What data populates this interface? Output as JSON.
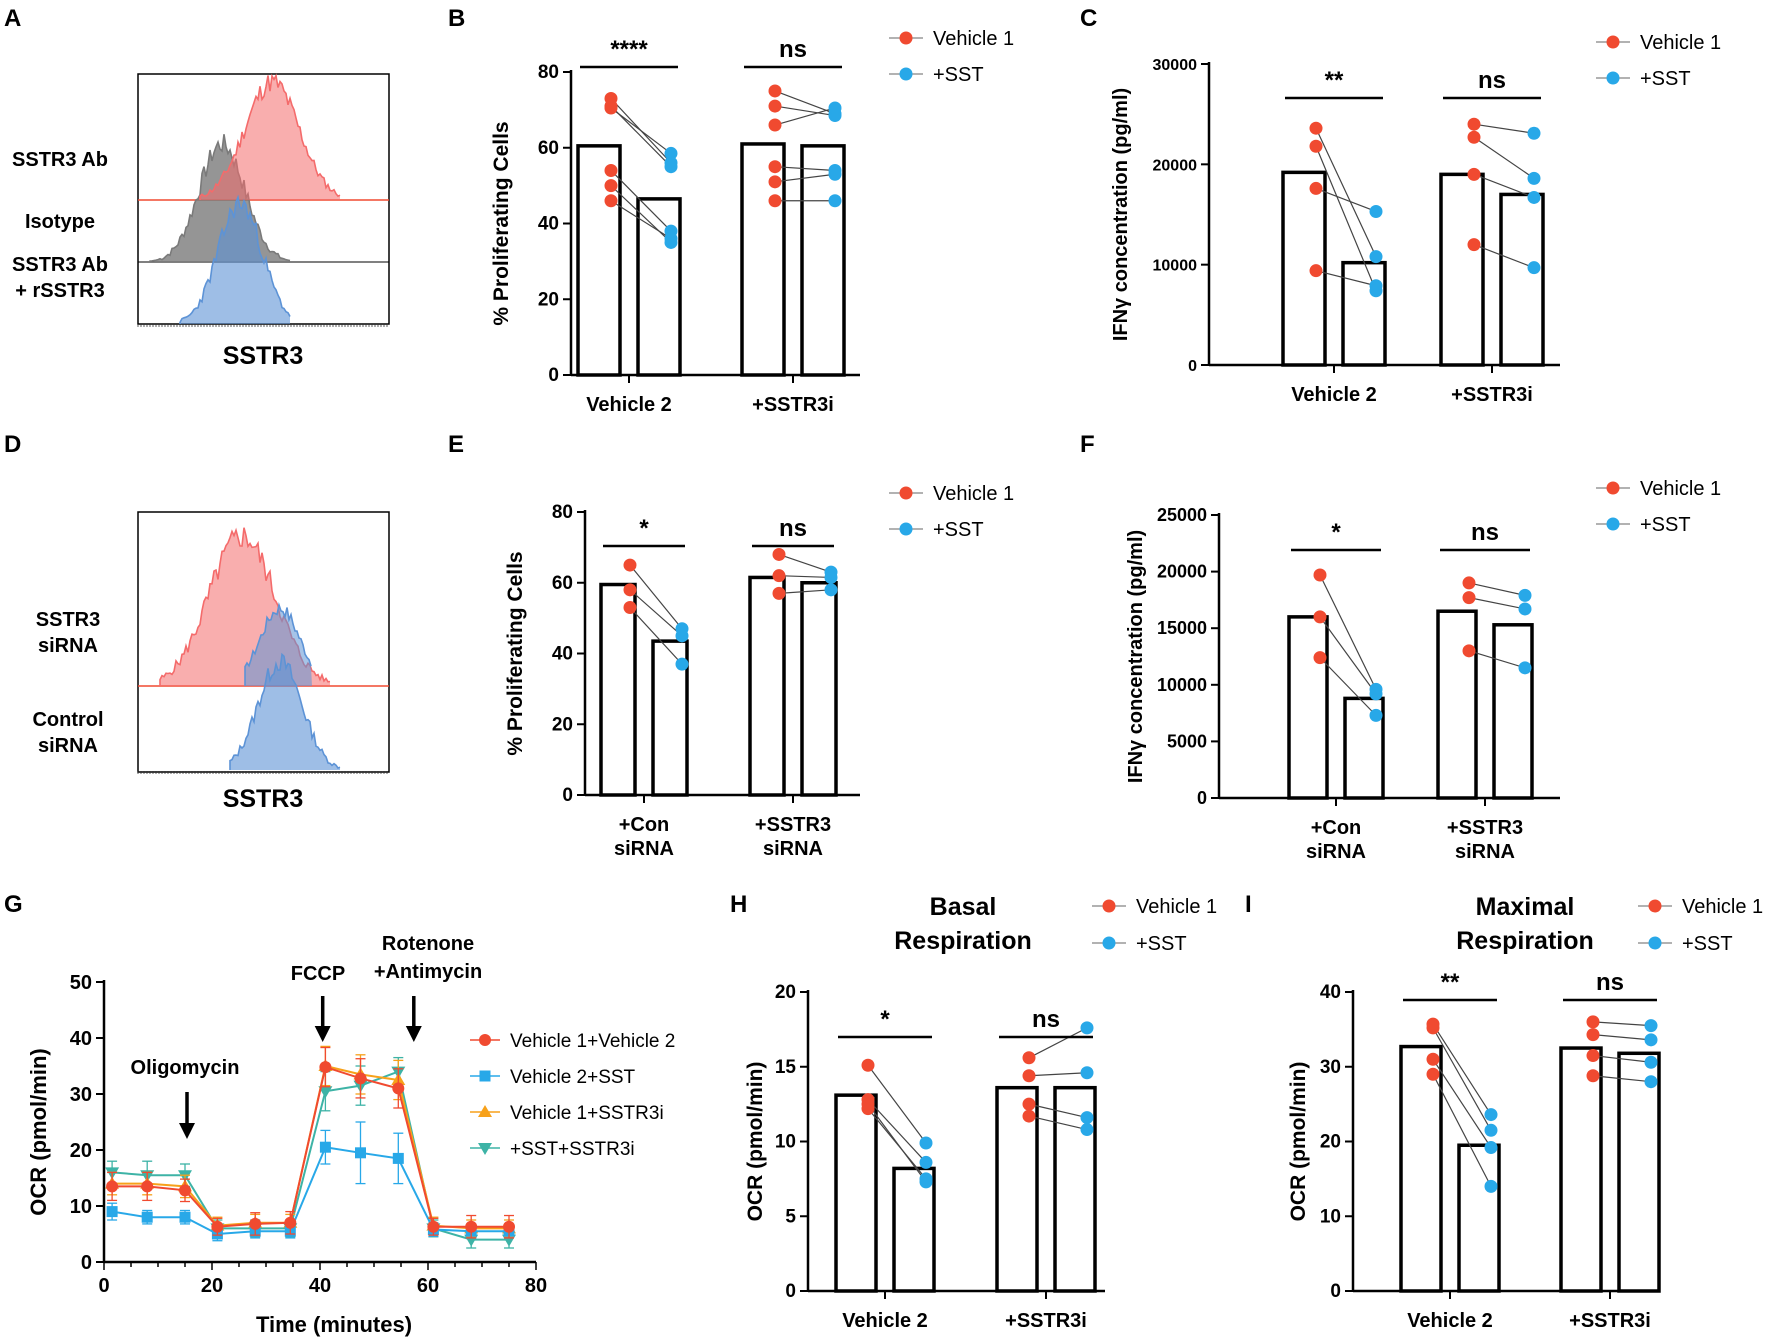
{
  "colors": {
    "red": "#F04A30",
    "blue": "#28A8E8",
    "orange": "#F7A11A",
    "teal": "#3DB3A6",
    "hist_red": "#F46B6B",
    "hist_blue": "#5D93D6",
    "hist_gray": "#7A7A7A"
  },
  "legend_labels": {
    "veh1": "Vehicle 1",
    "sst": "+SST"
  },
  "chart_data": [
    {
      "panel": "A",
      "type": "histogram",
      "xlabel": "SSTR3",
      "tracks": [
        "SSTR3 Ab",
        "Isotype",
        "SSTR3 Ab + rSSTR3"
      ],
      "track_lines": [
        [
          "SSTR3 Ab"
        ],
        [
          "Isotype"
        ],
        [
          "SSTR3 Ab",
          "+ rSSTR3"
        ]
      ],
      "series_colors": [
        "red",
        "gray",
        "blue"
      ]
    },
    {
      "panel": "B",
      "type": "bar",
      "ylabel": "% Proliferating Cells",
      "ylim": [
        0,
        80
      ],
      "yticks": [
        0,
        20,
        40,
        60,
        80
      ],
      "groups": [
        "Vehicle 2",
        "+SSTR3i"
      ],
      "series": [
        {
          "name": "Vehicle 1",
          "values": [
            60.5,
            61
          ]
        },
        {
          "name": "+SST",
          "values": [
            46.5,
            60.5
          ]
        }
      ],
      "points": [
        [
          [
            73,
            56
          ],
          [
            70.5,
            58.5
          ],
          [
            71,
            55
          ],
          [
            54,
            38
          ],
          [
            50,
            35
          ],
          [
            46,
            36
          ]
        ],
        [
          [
            75,
            69
          ],
          [
            71,
            68.5
          ],
          [
            66,
            70.5
          ],
          [
            55,
            54
          ],
          [
            51,
            53
          ],
          [
            46,
            46
          ]
        ]
      ],
      "significance": [
        "****",
        "ns"
      ]
    },
    {
      "panel": "C",
      "type": "bar",
      "ylabel": "IFNγ concentration (pg/ml)",
      "ylim": [
        0,
        30000
      ],
      "yticks": [
        0,
        10000,
        20000,
        30000
      ],
      "groups": [
        "Vehicle 2",
        "+SSTR3i"
      ],
      "series": [
        {
          "name": "Vehicle 1",
          "values": [
            19200,
            19000
          ]
        },
        {
          "name": "+SST",
          "values": [
            10200,
            17000
          ]
        }
      ],
      "points": [
        [
          [
            23600,
            10800
          ],
          [
            21800,
            7400
          ],
          [
            17600,
            15300
          ],
          [
            9400,
            7900
          ]
        ],
        [
          [
            24000,
            23100
          ],
          [
            22700,
            18600
          ],
          [
            19000,
            16700
          ],
          [
            12000,
            9700
          ]
        ]
      ],
      "significance": [
        "**",
        "ns"
      ]
    },
    {
      "panel": "D",
      "type": "histogram",
      "xlabel": "SSTR3",
      "tracks": [
        "SSTR3 siRNA",
        "Control siRNA"
      ],
      "track_lines": [
        [
          "SSTR3",
          "siRNA"
        ],
        [
          "Control",
          "siRNA"
        ]
      ],
      "series_colors": [
        "red",
        "blue"
      ]
    },
    {
      "panel": "E",
      "type": "bar",
      "ylabel": "% Proliferating Cells",
      "ylim": [
        0,
        80
      ],
      "yticks": [
        0,
        20,
        40,
        60,
        80
      ],
      "groups": [
        "+Con siRNA",
        "+SSTR3 siRNA"
      ],
      "group_lines": [
        [
          "+Con",
          "siRNA"
        ],
        [
          "+SSTR3",
          "siRNA"
        ]
      ],
      "series": [
        {
          "name": "Vehicle 1",
          "values": [
            59.5,
            61.5
          ]
        },
        {
          "name": "+SST",
          "values": [
            43.5,
            60
          ]
        }
      ],
      "points": [
        [
          [
            65,
            47
          ],
          [
            58,
            45
          ],
          [
            53,
            37
          ]
        ],
        [
          [
            68,
            63
          ],
          [
            62,
            61.5
          ],
          [
            57,
            58
          ]
        ]
      ],
      "significance": [
        "*",
        "ns"
      ]
    },
    {
      "panel": "F",
      "type": "bar",
      "ylabel": "IFNγ concentration (pg/ml)",
      "ylim": [
        0,
        25000
      ],
      "yticks": [
        0,
        5000,
        10000,
        15000,
        20000,
        25000
      ],
      "groups": [
        "+Con siRNA",
        "+SSTR3 siRNA"
      ],
      "group_lines": [
        [
          "+Con",
          "siRNA"
        ],
        [
          "+SSTR3",
          "siRNA"
        ]
      ],
      "series": [
        {
          "name": "Vehicle 1",
          "values": [
            16000,
            16500
          ]
        },
        {
          "name": "+SST",
          "values": [
            8800,
            15300
          ]
        }
      ],
      "points": [
        [
          [
            19700,
            9600
          ],
          [
            16000,
            9200
          ],
          [
            12400,
            7300
          ]
        ],
        [
          [
            19000,
            17900
          ],
          [
            17700,
            16700
          ],
          [
            13000,
            11500
          ]
        ]
      ],
      "significance": [
        "*",
        "ns"
      ]
    },
    {
      "panel": "G",
      "type": "line",
      "xlabel": "Time (minutes)",
      "ylabel": "OCR (pmol/min)",
      "xlim": [
        0,
        80
      ],
      "ylim": [
        0,
        50
      ],
      "xticks": [
        0,
        20,
        40,
        60,
        80
      ],
      "yticks": [
        0,
        10,
        20,
        30,
        40,
        50
      ],
      "x": [
        1.5,
        8,
        15,
        21,
        28,
        34.5,
        41,
        47.5,
        54.5,
        61,
        68,
        75
      ],
      "series": [
        {
          "name": "Vehicle 1+Vehicle 2",
          "color": "red",
          "marker": "circle",
          "values": [
            13.5,
            13.5,
            12.8,
            6.3,
            6.8,
            7,
            34.8,
            32.8,
            31,
            6.3,
            6.3,
            6.3
          ],
          "errors": [
            2.5,
            2.5,
            2.0,
            1.5,
            2,
            2,
            3.5,
            3.5,
            3.5,
            1.5,
            2,
            2
          ]
        },
        {
          "name": "Vehicle 2+SST",
          "color": "blue",
          "marker": "square",
          "values": [
            9,
            8,
            8,
            5,
            5.5,
            5.5,
            20.5,
            19.5,
            18.5,
            5.8,
            5.5,
            5.5
          ],
          "errors": [
            1.5,
            1.2,
            1.2,
            1.2,
            1.2,
            1.2,
            3.0,
            5.5,
            4.5,
            1.2,
            1.2,
            1.2
          ]
        },
        {
          "name": "Vehicle 1+SSTR3i",
          "color": "orange",
          "marker": "triangle",
          "values": [
            14,
            14,
            13.5,
            6.5,
            7,
            7,
            35,
            33.5,
            32.5,
            6.5,
            6,
            6
          ],
          "errors": [
            2,
            2,
            2,
            1.5,
            1.5,
            1.5,
            3.5,
            3.5,
            3.5,
            1.5,
            1.5,
            1.5
          ]
        },
        {
          "name": "+SST+SSTR3i",
          "color": "teal",
          "marker": "triangle-down",
          "values": [
            16,
            15.5,
            15.5,
            6,
            6,
            6,
            30.5,
            31.5,
            34,
            6,
            4,
            4
          ],
          "errors": [
            2,
            2.5,
            2,
            1.5,
            1.5,
            1.5,
            3.5,
            3.5,
            2.5,
            1.5,
            1.5,
            1.5
          ]
        }
      ],
      "annotations": [
        {
          "lines": [
            "Oligomycin"
          ],
          "x": 15
        },
        {
          "lines": [
            "FCCP"
          ],
          "x": 40.5
        },
        {
          "lines": [
            "Rotenone",
            "+Antimycin"
          ],
          "x": 57
        }
      ]
    },
    {
      "panel": "H",
      "type": "bar",
      "title": "Basal Respiration",
      "title_lines": [
        "Basal",
        "Respiration"
      ],
      "ylabel": "OCR (pmol/min)",
      "ylim": [
        0,
        20
      ],
      "yticks": [
        0,
        5,
        10,
        15,
        20
      ],
      "groups": [
        "Vehicle 2",
        "+SSTR3i"
      ],
      "series": [
        {
          "name": "Vehicle 1",
          "values": [
            13.1,
            13.6
          ]
        },
        {
          "name": "+SST",
          "values": [
            8.2,
            13.6
          ]
        }
      ],
      "points": [
        [
          [
            15.1,
            9.9
          ],
          [
            12.8,
            8.6
          ],
          [
            12.5,
            7.3
          ],
          [
            12.2,
            7.5
          ]
        ],
        [
          [
            15.6,
            17.6
          ],
          [
            14.4,
            14.6
          ],
          [
            12.5,
            11.6
          ],
          [
            11.7,
            10.8
          ]
        ]
      ],
      "significance": [
        "*",
        "ns"
      ]
    },
    {
      "panel": "I",
      "type": "bar",
      "title": "Maximal Respiration",
      "title_lines": [
        "Maximal",
        "Respiration"
      ],
      "ylabel": "OCR (pmol/min)",
      "ylim": [
        0,
        40
      ],
      "yticks": [
        0,
        10,
        20,
        30,
        40
      ],
      "groups": [
        "Vehicle 2",
        "+SSTR3i"
      ],
      "series": [
        {
          "name": "Vehicle 1",
          "values": [
            32.7,
            32.5
          ]
        },
        {
          "name": "+SST",
          "values": [
            19.5,
            31.8
          ]
        }
      ],
      "points": [
        [
          [
            35.7,
            23.6
          ],
          [
            35.2,
            21.5
          ],
          [
            31,
            19.2
          ],
          [
            29,
            14
          ]
        ],
        [
          [
            36,
            35.5
          ],
          [
            34.3,
            33.6
          ],
          [
            31.5,
            30.6
          ],
          [
            28.8,
            28
          ]
        ]
      ],
      "significance": [
        "**",
        "ns"
      ]
    }
  ]
}
